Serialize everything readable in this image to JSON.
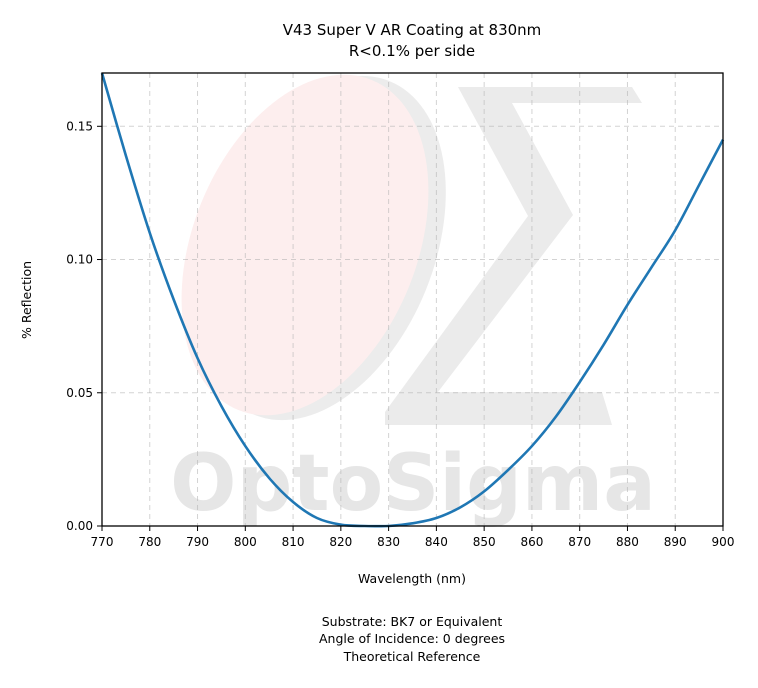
{
  "chart_data": {
    "type": "line",
    "title": "V43 Super V AR Coating at 830nm",
    "subtitle": "R<0.1% per side",
    "xlabel": "Wavelength (nm)",
    "ylabel": "% Reflection",
    "xlim": [
      770,
      900
    ],
    "ylim": [
      0,
      0.17
    ],
    "x_ticks": [
      "770",
      "780",
      "790",
      "800",
      "810",
      "820",
      "830",
      "840",
      "850",
      "860",
      "870",
      "880",
      "890",
      "900"
    ],
    "y_ticks": [
      "0.00",
      "0.05",
      "0.10",
      "0.15"
    ],
    "grid": true,
    "series_color": "#1f77b4",
    "series": [
      {
        "x": [
          770,
          775,
          780,
          785,
          790,
          795,
          800,
          805,
          810,
          815,
          820,
          825,
          830,
          835,
          840,
          845,
          850,
          855,
          860,
          865,
          870,
          875,
          880,
          885,
          890,
          895,
          900
        ],
        "y": [
          0.17,
          0.139,
          0.11,
          0.085,
          0.063,
          0.045,
          0.03,
          0.018,
          0.009,
          0.003,
          0.0005,
          0.0,
          0.0,
          0.001,
          0.003,
          0.007,
          0.013,
          0.021,
          0.03,
          0.041,
          0.054,
          0.068,
          0.083,
          0.097,
          0.111,
          0.128,
          0.145
        ]
      }
    ],
    "watermark": "OptoSigma",
    "captions": [
      "Substrate: BK7 or Equivalent",
      "Angle of Incidence: 0 degrees",
      "Theoretical Reference"
    ]
  }
}
